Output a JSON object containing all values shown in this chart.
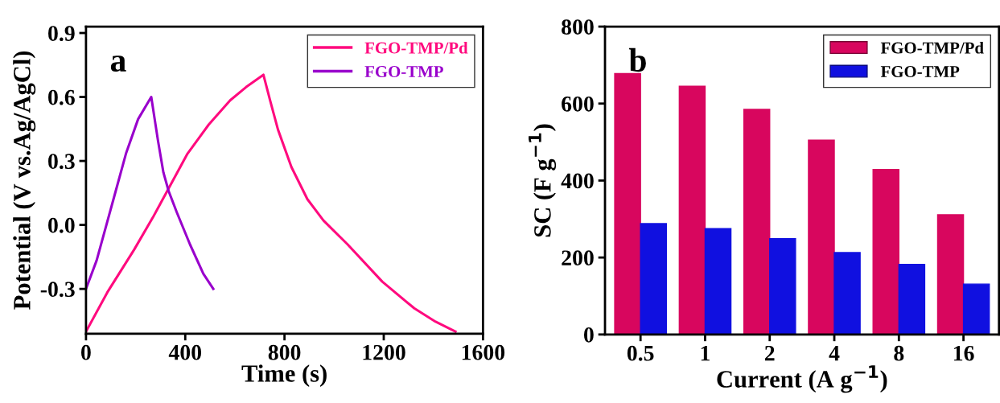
{
  "chart_data": [
    {
      "type": "line",
      "xlabel": "Time (s)",
      "ylabel": "Potential (V vs.Ag/AgCl)",
      "annotations": [
        "a"
      ],
      "xlim": [
        0,
        1600
      ],
      "xticks": [
        0,
        400,
        800,
        1200,
        1600
      ],
      "ylim": [
        -0.51,
        0.93
      ],
      "yticks": [
        {
          "value": -0.3,
          "label": "-0.3"
        },
        {
          "value": 0.0,
          "label": "0.0"
        },
        {
          "value": 0.3,
          "label": "0.3"
        },
        {
          "value": 0.6,
          "label": "0.6"
        },
        {
          "value": 0.9,
          "label": "0.9"
        }
      ],
      "grid": false,
      "legend": "top right",
      "marker": "none",
      "line_style": "solid",
      "series": [
        {
          "name": "FGO-TMP/Pd",
          "color": "#ff0a7e",
          "x": [
            0,
            86,
            194,
            269,
            333,
            409,
            495,
            581,
            645,
            715,
            742,
            774,
            828,
            892,
            957,
            1054,
            1194,
            1323,
            1409,
            1489
          ],
          "values": [
            -0.5,
            -0.316,
            -0.116,
            0.034,
            0.171,
            0.334,
            0.471,
            0.584,
            0.646,
            0.704,
            0.584,
            0.446,
            0.271,
            0.121,
            0.021,
            -0.091,
            -0.266,
            -0.391,
            -0.454,
            -0.5
          ]
        },
        {
          "name": "FGO-TMP",
          "color": "#9900cc",
          "x": [
            0,
            43,
            108,
            161,
            210,
            263,
            290,
            312,
            333,
            366,
            419,
            473,
            513
          ],
          "values": [
            -0.3,
            -0.166,
            0.109,
            0.334,
            0.496,
            0.6,
            0.396,
            0.246,
            0.159,
            0.059,
            -0.091,
            -0.229,
            -0.3
          ]
        }
      ]
    },
    {
      "type": "bar",
      "xlabel": "Current (A g$^{−1}$)",
      "ylabel": "SC (F g$^{−1}$)",
      "annotations": [
        "b"
      ],
      "categories": [
        "0.5",
        "1",
        "2",
        "4",
        "8",
        "16"
      ],
      "ylim": [
        0,
        800
      ],
      "yticks": [
        0,
        200,
        400,
        600,
        800
      ],
      "grid": false,
      "legend": "top right",
      "series": [
        {
          "name": "FGO-TMP/Pd",
          "color": "#d8065e",
          "values": [
            678,
            645,
            585,
            505,
            429,
            311
          ]
        },
        {
          "name": "FGO-TMP",
          "color": "#1010e0",
          "values": [
            288,
            275,
            249,
            213,
            182,
            131
          ]
        }
      ]
    }
  ]
}
